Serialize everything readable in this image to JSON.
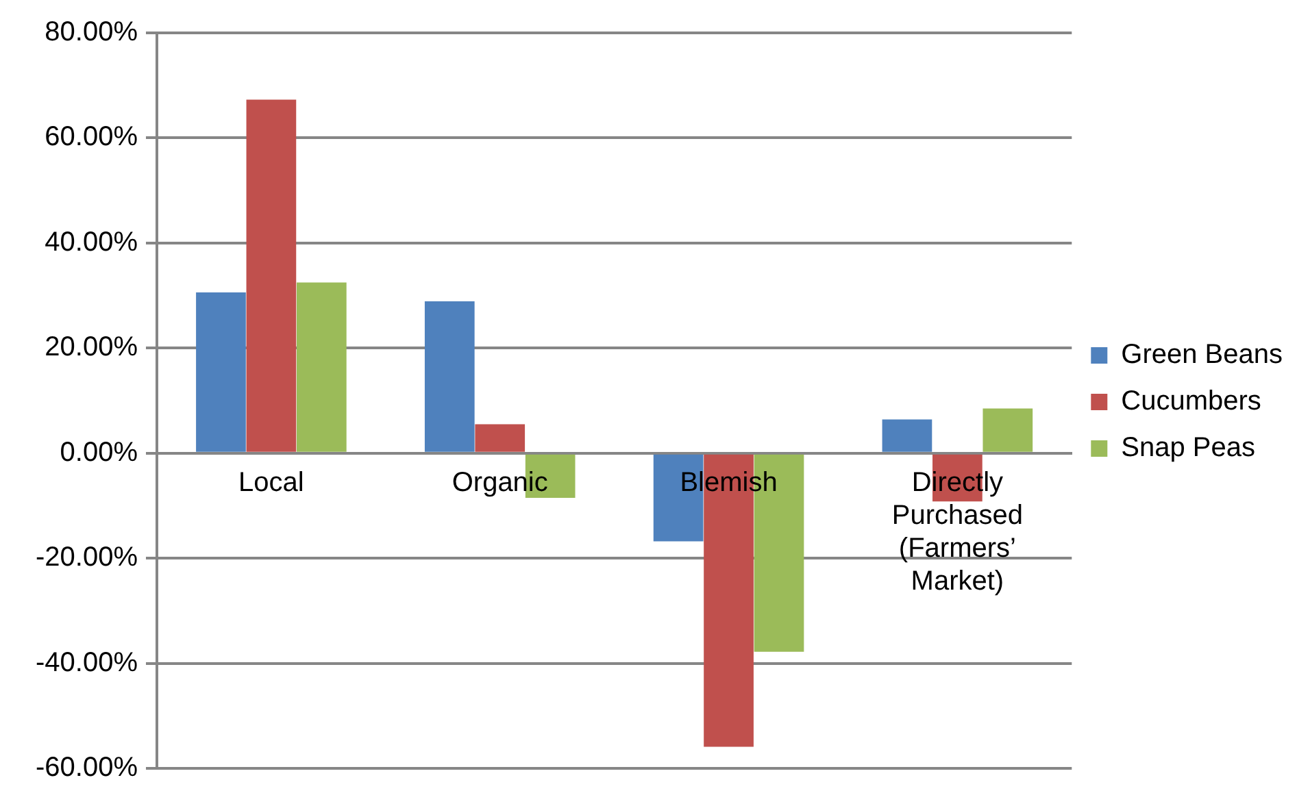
{
  "chart_data": {
    "type": "bar",
    "categories": [
      "Local",
      "Organic",
      "Blemish",
      "Directly Purchased (Farmers’ Market)"
    ],
    "series": [
      {
        "name": "Green Beans",
        "color": "#4f81bd",
        "values": [
          30.6,
          28.9,
          -16.8,
          6.4
        ]
      },
      {
        "name": "Cucumbers",
        "color": "#c0504d",
        "values": [
          67.3,
          5.5,
          -55.9,
          -9.2
        ]
      },
      {
        "name": "Snap Peas",
        "color": "#9bbb59",
        "values": [
          32.5,
          -8.5,
          -37.8,
          8.5
        ]
      }
    ],
    "ylim": [
      -60,
      80
    ],
    "yticks": [
      {
        "value": -60,
        "label": "-60.00%"
      },
      {
        "value": -40,
        "label": "-40.00%"
      },
      {
        "value": -20,
        "label": "-20.00%"
      },
      {
        "value": 0,
        "label": "0.00%"
      },
      {
        "value": 20,
        "label": "20.00%"
      },
      {
        "value": 40,
        "label": "40.00%"
      },
      {
        "value": 60,
        "label": "60.00%"
      },
      {
        "value": 80,
        "label": "80.00%"
      }
    ],
    "grid": "y",
    "legend": "right"
  }
}
